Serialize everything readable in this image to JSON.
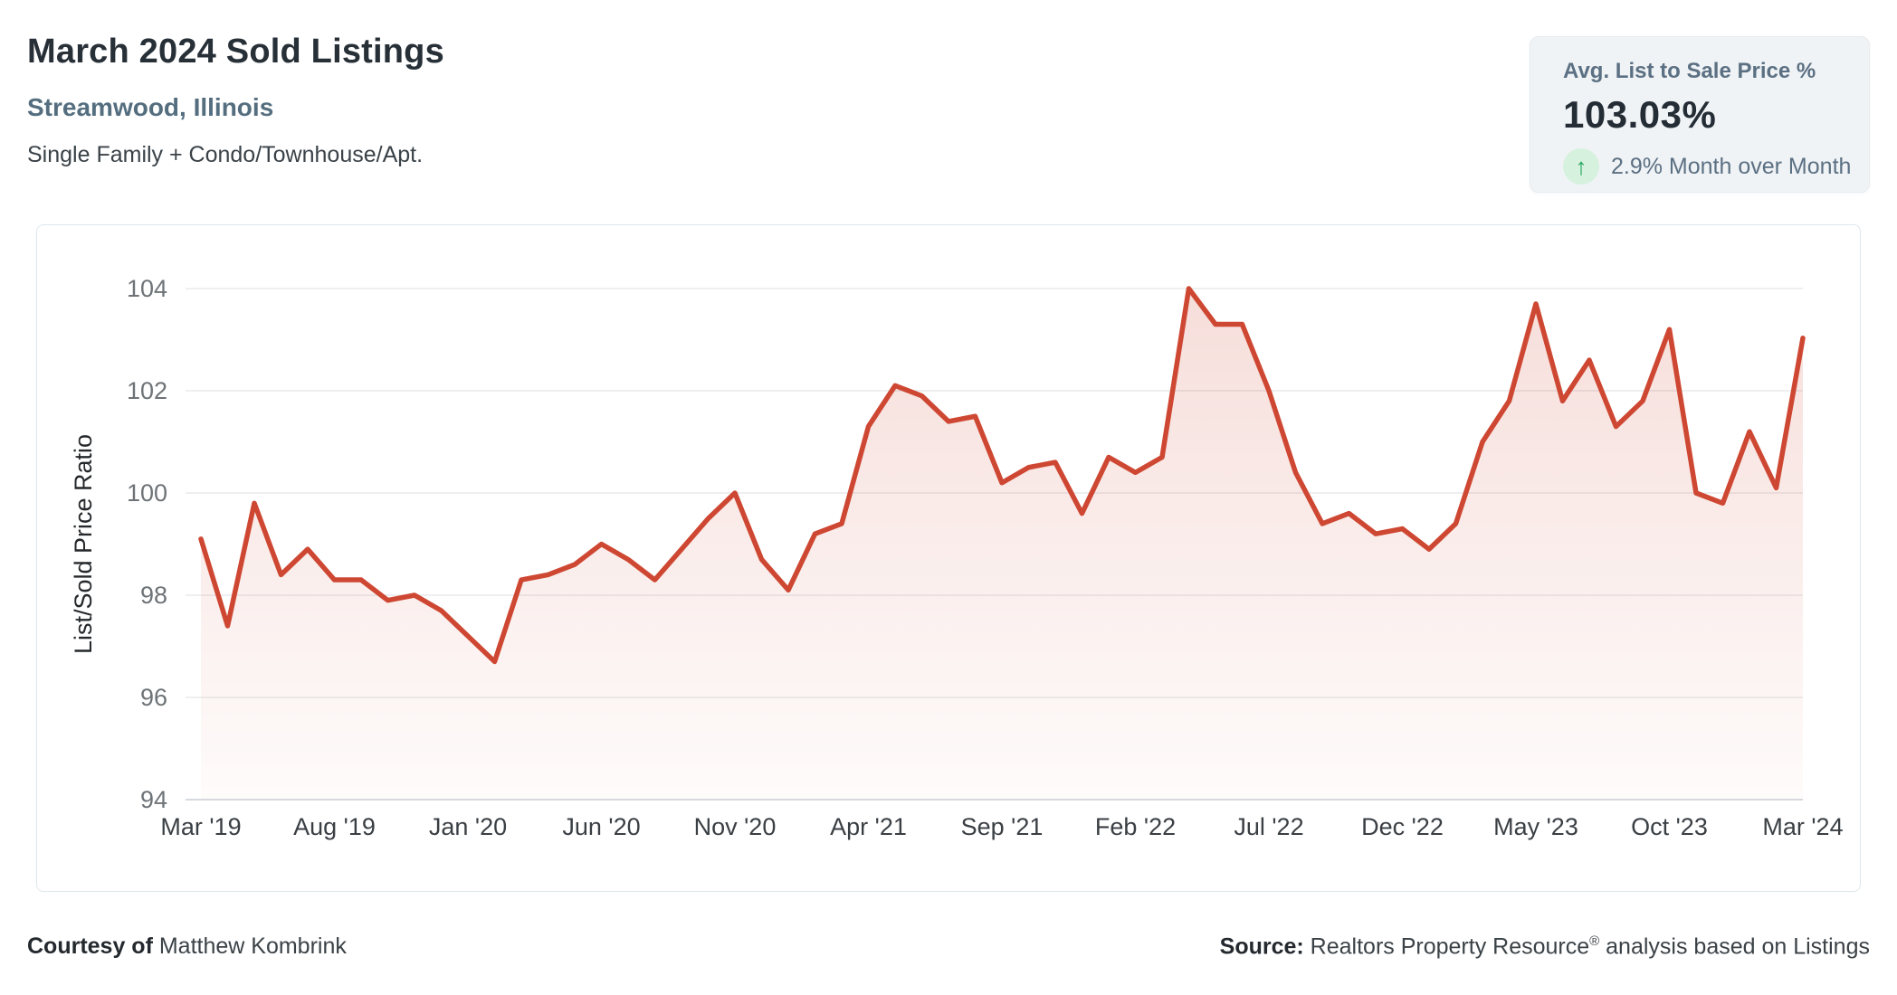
{
  "header": {
    "title": "March 2024 Sold Listings",
    "subtitle": "Streamwood, Illinois",
    "property_types": "Single Family + Condo/Townhouse/Apt."
  },
  "stat_card": {
    "label": "Avg. List to Sale Price %",
    "value": "103.03%",
    "delta_arrow": "↑",
    "delta_text": "2.9% Month over Month",
    "arrow_color": "#1fa45c",
    "arrow_bg": "#d6f1de"
  },
  "footer": {
    "courtesy_label": "Courtesy of",
    "courtesy_name": " Matthew Kombrink",
    "source_label": "Source:",
    "source_text_before_reg": " Realtors Property Resource",
    "source_reg_mark": "®",
    "source_text_after_reg": " analysis based on Listings"
  },
  "chart_data": {
    "type": "area",
    "title": "List to Sold Price Ratio by month",
    "ylabel": "List/Sold Price Ratio",
    "xlabel": "",
    "ylim": [
      94,
      104.6
    ],
    "yticks": [
      94,
      96,
      98,
      100,
      102,
      104
    ],
    "x_tick_step": 5,
    "x_tick_labels": [
      "Mar '19",
      "Aug '19",
      "Jan '20",
      "Jun '20",
      "Nov '20",
      "Apr '21",
      "Sep '21",
      "Feb '22",
      "Jul '22",
      "Dec '22",
      "May '23",
      "Oct '23",
      "Mar '24"
    ],
    "grid": true,
    "legend_position": "none",
    "line_color": "#ce4732",
    "fill_top_color": "rgba(206,71,50,0.18)",
    "fill_bottom_color": "rgba(206,71,50,0.02)",
    "x": [
      "Mar '19",
      "Apr '19",
      "May '19",
      "Jun '19",
      "Jul '19",
      "Aug '19",
      "Sep '19",
      "Oct '19",
      "Nov '19",
      "Dec '19",
      "Jan '20",
      "Feb '20",
      "Mar '20",
      "Apr '20",
      "May '20",
      "Jun '20",
      "Jul '20",
      "Aug '20",
      "Sep '20",
      "Oct '20",
      "Nov '20",
      "Dec '20",
      "Jan '21",
      "Feb '21",
      "Mar '21",
      "Apr '21",
      "May '21",
      "Jun '21",
      "Jul '21",
      "Aug '21",
      "Sep '21",
      "Oct '21",
      "Nov '21",
      "Dec '21",
      "Jan '22",
      "Feb '22",
      "Mar '22",
      "Apr '22",
      "May '22",
      "Jun '22",
      "Jul '22",
      "Aug '22",
      "Sep '22",
      "Oct '22",
      "Nov '22",
      "Dec '22",
      "Jan '23",
      "Feb '23",
      "Mar '23",
      "Apr '23",
      "May '23",
      "Jun '23",
      "Jul '23",
      "Aug '23",
      "Sep '23",
      "Oct '23",
      "Nov '23",
      "Dec '23",
      "Jan '24",
      "Feb '24",
      "Mar '24"
    ],
    "values": [
      99.1,
      97.4,
      99.8,
      98.4,
      98.9,
      98.3,
      98.3,
      97.9,
      98.0,
      97.7,
      97.2,
      96.7,
      98.3,
      98.4,
      98.6,
      99.0,
      98.7,
      98.3,
      98.9,
      99.5,
      100.0,
      98.7,
      98.1,
      99.2,
      99.4,
      101.3,
      102.1,
      101.9,
      101.4,
      101.5,
      100.2,
      100.5,
      100.6,
      99.6,
      100.7,
      100.4,
      100.7,
      104.0,
      103.3,
      103.3,
      102.0,
      100.4,
      99.4,
      99.6,
      99.2,
      99.3,
      98.9,
      99.4,
      101.0,
      101.8,
      103.7,
      101.8,
      102.6,
      101.3,
      101.8,
      103.2,
      100.0,
      99.8,
      101.2,
      100.1,
      103.03
    ]
  }
}
